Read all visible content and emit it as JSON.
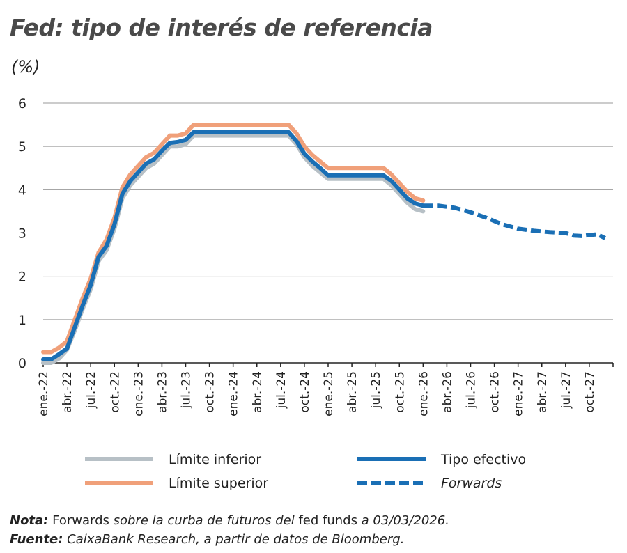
{
  "title": "Fed: tipo de interés de referencia",
  "unit": "(%)",
  "notes": {
    "nota_label": "Nota:",
    "nota_parts": [
      "Forwards",
      " sobre la curba de futuros del ",
      "fed funds",
      " a 03/03/2026."
    ],
    "fuente_label": "Fuente:",
    "fuente_text": " CaixaBank Research, a partir de datos de Bloomberg."
  },
  "colors": {
    "limite_inferior": "#b7c0c6",
    "limite_superior": "#f0a07a",
    "tipo_efectivo": "#1a6fb5",
    "forwards": "#1a6fb5",
    "grid": "#9a9a9a",
    "axis": "#222222"
  },
  "chart_data": {
    "type": "line",
    "x_unit": "months since ene.-22",
    "x_tick_labels": [
      "ene.-22",
      "abr.-22",
      "jul.-22",
      "oct.-22",
      "ene.-23",
      "abr.-23",
      "jul.-23",
      "oct.-23",
      "ene.-24",
      "abr.-24",
      "jul.-24",
      "oct.-24",
      "ene.-25",
      "abr.-25",
      "jul.-25",
      "oct.-25",
      "ene.-26",
      "abr.-26",
      "jul.-26",
      "oct.-26",
      "ene.-27",
      "abr.-27",
      "jul.-27",
      "oct.-27"
    ],
    "ylim": [
      0,
      6
    ],
    "yticks": [
      0,
      1,
      2,
      3,
      4,
      5,
      6
    ],
    "xlim": [
      0,
      71
    ],
    "grid": true,
    "legend_position": "bottom",
    "series": [
      {
        "name": "Límite inferior",
        "style": "solid",
        "points": [
          [
            0,
            0
          ],
          [
            1,
            0
          ],
          [
            2,
            0.1
          ],
          [
            3,
            0.3
          ],
          [
            4,
            0.75
          ],
          [
            5,
            1.25
          ],
          [
            6,
            1.7
          ],
          [
            7,
            2.35
          ],
          [
            8,
            2.6
          ],
          [
            9,
            3.1
          ],
          [
            10,
            3.8
          ],
          [
            11,
            4.1
          ],
          [
            12,
            4.3
          ],
          [
            13,
            4.5
          ],
          [
            14,
            4.6
          ],
          [
            15,
            4.8
          ],
          [
            16,
            5.0
          ],
          [
            17,
            5.0
          ],
          [
            18,
            5.05
          ],
          [
            19,
            5.25
          ],
          [
            20,
            5.25
          ],
          [
            30,
            5.25
          ],
          [
            31,
            5.25
          ],
          [
            32,
            5.05
          ],
          [
            33,
            4.75
          ],
          [
            34,
            4.55
          ],
          [
            35,
            4.4
          ],
          [
            36,
            4.25
          ],
          [
            37,
            4.25
          ],
          [
            42,
            4.25
          ],
          [
            43,
            4.25
          ],
          [
            44,
            4.1
          ],
          [
            45,
            3.9
          ],
          [
            46,
            3.7
          ],
          [
            47,
            3.55
          ],
          [
            48,
            3.5
          ]
        ]
      },
      {
        "name": "Límite superior",
        "style": "solid",
        "points": [
          [
            0,
            0.25
          ],
          [
            1,
            0.25
          ],
          [
            2,
            0.35
          ],
          [
            3,
            0.5
          ],
          [
            4,
            1.0
          ],
          [
            5,
            1.5
          ],
          [
            6,
            1.95
          ],
          [
            7,
            2.55
          ],
          [
            8,
            2.85
          ],
          [
            9,
            3.35
          ],
          [
            10,
            4.05
          ],
          [
            11,
            4.35
          ],
          [
            12,
            4.55
          ],
          [
            13,
            4.75
          ],
          [
            14,
            4.85
          ],
          [
            15,
            5.05
          ],
          [
            16,
            5.25
          ],
          [
            17,
            5.25
          ],
          [
            18,
            5.3
          ],
          [
            19,
            5.5
          ],
          [
            20,
            5.5
          ],
          [
            30,
            5.5
          ],
          [
            31,
            5.5
          ],
          [
            32,
            5.3
          ],
          [
            33,
            5.0
          ],
          [
            34,
            4.8
          ],
          [
            35,
            4.65
          ],
          [
            36,
            4.5
          ],
          [
            37,
            4.5
          ],
          [
            42,
            4.5
          ],
          [
            43,
            4.5
          ],
          [
            44,
            4.35
          ],
          [
            45,
            4.15
          ],
          [
            46,
            3.95
          ],
          [
            47,
            3.8
          ],
          [
            48,
            3.75
          ]
        ]
      },
      {
        "name": "Tipo efectivo",
        "style": "solid",
        "points": [
          [
            0,
            0.08
          ],
          [
            1,
            0.08
          ],
          [
            2,
            0.2
          ],
          [
            3,
            0.33
          ],
          [
            4,
            0.83
          ],
          [
            5,
            1.33
          ],
          [
            6,
            1.8
          ],
          [
            7,
            2.45
          ],
          [
            8,
            2.7
          ],
          [
            9,
            3.2
          ],
          [
            10,
            3.9
          ],
          [
            11,
            4.2
          ],
          [
            12,
            4.4
          ],
          [
            13,
            4.6
          ],
          [
            14,
            4.7
          ],
          [
            15,
            4.9
          ],
          [
            16,
            5.08
          ],
          [
            17,
            5.1
          ],
          [
            18,
            5.15
          ],
          [
            19,
            5.33
          ],
          [
            20,
            5.33
          ],
          [
            30,
            5.33
          ],
          [
            31,
            5.33
          ],
          [
            32,
            5.12
          ],
          [
            33,
            4.83
          ],
          [
            34,
            4.65
          ],
          [
            35,
            4.5
          ],
          [
            36,
            4.33
          ],
          [
            37,
            4.33
          ],
          [
            42,
            4.33
          ],
          [
            43,
            4.33
          ],
          [
            44,
            4.2
          ],
          [
            45,
            4.0
          ],
          [
            46,
            3.8
          ],
          [
            47,
            3.68
          ],
          [
            48,
            3.63
          ]
        ]
      },
      {
        "name": "Forwards",
        "style": "dashed",
        "points": [
          [
            48,
            3.63
          ],
          [
            50,
            3.63
          ],
          [
            52,
            3.58
          ],
          [
            54,
            3.48
          ],
          [
            56,
            3.35
          ],
          [
            58,
            3.2
          ],
          [
            60,
            3.1
          ],
          [
            62,
            3.05
          ],
          [
            64,
            3.02
          ],
          [
            66,
            3.0
          ],
          [
            67,
            2.94
          ],
          [
            68,
            2.93
          ],
          [
            69,
            2.95
          ],
          [
            70,
            2.97
          ],
          [
            71,
            2.88
          ]
        ]
      }
    ]
  }
}
